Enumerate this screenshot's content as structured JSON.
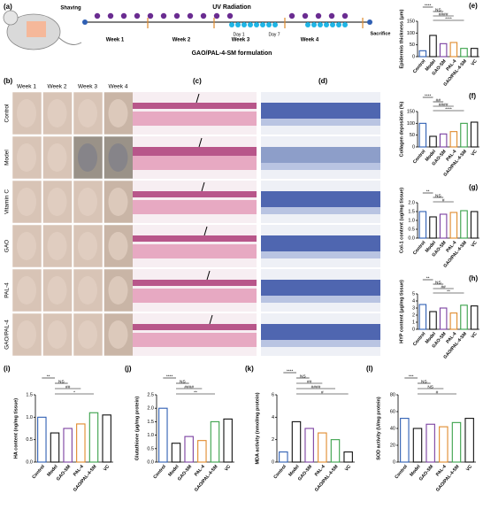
{
  "panel_labels": {
    "a": "(a)",
    "b": "(b)",
    "c": "(c)",
    "d": "(d)"
  },
  "timeline": {
    "top_label": "UV Radiation",
    "shaving": "Shaving",
    "weeks": [
      "Week 1",
      "Week 2",
      "Week 3",
      "Week 4"
    ],
    "days": [
      "Day 1",
      "Day 7"
    ],
    "sacrifice": "Sacrifice",
    "bottom_label": "GAO/PAL-4-SM formulation"
  },
  "photos": {
    "weeks": [
      "Week 1",
      "Week 2",
      "Week 3",
      "Week 4"
    ],
    "groups": [
      "Control",
      "Model",
      "Vitamin C",
      "GAO",
      "PAL-4",
      "GAO/PAL-4"
    ]
  },
  "chart_data": [
    {
      "type": "bar",
      "panel": "(e)",
      "y_label": "Epidermis thickness (μm)",
      "categories": [
        "Control",
        "Model",
        "GAO-SM",
        "PAL-4",
        "GAO/PAL-4-SM",
        "VC"
      ],
      "values": [
        25,
        90,
        55,
        60,
        35,
        35
      ],
      "colors": [
        "#2f5fb3",
        "#111111",
        "#7a3fa0",
        "#e08a2c",
        "#3aa14a",
        "#111111"
      ],
      "ylim": [
        0,
        150
      ],
      "yticks": [
        0,
        50,
        100,
        150
      ],
      "annotations": [
        "****",
        "NS",
        "####",
        "****"
      ]
    },
    {
      "type": "bar",
      "panel": "(f)",
      "y_label": "Collagen deposition (%)",
      "categories": [
        "Control",
        "Model",
        "GAO-SM",
        "PAL-4",
        "GAO/PAL-4-SM",
        "VC"
      ],
      "values": [
        100,
        45,
        55,
        65,
        100,
        105
      ],
      "colors": [
        "#2f5fb3",
        "#111111",
        "#7a3fa0",
        "#e08a2c",
        "#3aa14a",
        "#111111"
      ],
      "ylim": [
        0,
        150
      ],
      "yticks": [
        0,
        50,
        100,
        150
      ],
      "annotations": [
        "****",
        "##",
        "####",
        "****"
      ]
    },
    {
      "type": "bar",
      "panel": "(g)",
      "y_label": "Col-1 content (ug/mg tissue)",
      "categories": [
        "Control",
        "Model",
        "GAO-SM",
        "PAL-4",
        "GAO/PAL-4-SM",
        "VC"
      ],
      "values": [
        1.5,
        1.2,
        1.35,
        1.45,
        1.55,
        1.5
      ],
      "colors": [
        "#2f5fb3",
        "#111111",
        "#7a3fa0",
        "#e08a2c",
        "#3aa14a",
        "#111111"
      ],
      "ylim": [
        0,
        2
      ],
      "yticks": [
        {
          "value": 0,
          "label": "0.0"
        },
        0.5,
        {
          "value": 1,
          "label": "1.0"
        },
        1.5,
        {
          "value": 2,
          "label": "2.0"
        }
      ],
      "annotations": [
        "**",
        "NS",
        "#"
      ]
    },
    {
      "type": "bar",
      "panel": "(h)",
      "y_label": "HYP content (μg/mg tissue)",
      "categories": [
        "Control",
        "Model",
        "GAO-SM",
        "PAL-4",
        "GAO/PAL-4-SM",
        "VC"
      ],
      "values": [
        3.5,
        2.5,
        3.0,
        2.3,
        3.4,
        3.3
      ],
      "colors": [
        "#2f5fb3",
        "#111111",
        "#7a3fa0",
        "#e08a2c",
        "#3aa14a",
        "#111111"
      ],
      "ylim": [
        0,
        5
      ],
      "yticks": [
        0,
        1,
        2,
        3,
        4,
        5
      ],
      "annotations": [
        "**",
        "NS",
        "##",
        "**"
      ]
    },
    {
      "type": "bar",
      "panel": "(i)",
      "y_label": "HA content (ng/mg tissue)",
      "categories": [
        "Control",
        "Model",
        "GAO-SM",
        "PAL-4",
        "GAO/PAL-4-SM",
        "VC"
      ],
      "values": [
        1.0,
        0.65,
        0.75,
        0.85,
        1.1,
        1.05
      ],
      "colors": [
        "#2f5fb3",
        "#111111",
        "#7a3fa0",
        "#e08a2c",
        "#3aa14a",
        "#111111"
      ],
      "ylim": [
        0,
        1.5
      ],
      "yticks": [
        {
          "value": 0,
          "label": "0.0"
        },
        0.5,
        {
          "value": 1,
          "label": "1.0"
        },
        1.5
      ],
      "annotations": [
        "**",
        "NS",
        "##",
        "*"
      ]
    },
    {
      "type": "bar",
      "panel": "(j)",
      "y_label": "Glutathione (μg/mg protein)",
      "categories": [
        "Control",
        "Model",
        "GAO-SM",
        "PAL-4",
        "GAO/PAL-4-SM",
        "VC"
      ],
      "values": [
        2.0,
        0.7,
        0.95,
        0.8,
        1.5,
        1.6
      ],
      "colors": [
        "#2f5fb3",
        "#111111",
        "#7a3fa0",
        "#e08a2c",
        "#3aa14a",
        "#111111"
      ],
      "ylim": [
        0,
        2.5
      ],
      "yticks": [
        {
          "value": 0,
          "label": "0.0"
        },
        0.5,
        {
          "value": 1,
          "label": "1.0"
        },
        1.5,
        {
          "value": 2,
          "label": "2.0"
        },
        2.5
      ],
      "annotations": [
        "****",
        "NS",
        "####",
        "**"
      ]
    },
    {
      "type": "bar",
      "panel": "(k)",
      "y_label": "MDA activity (nmol/mg protein)",
      "categories": [
        "Control",
        "Model",
        "GAO-SM",
        "PAL-4",
        "GAO/PAL-4-SM",
        "VC"
      ],
      "values": [
        0.9,
        3.6,
        3.0,
        2.6,
        2.0,
        0.9
      ],
      "colors": [
        "#2f5fb3",
        "#111111",
        "#7a3fa0",
        "#e08a2c",
        "#3aa14a",
        "#111111"
      ],
      "ylim": [
        0,
        6
      ],
      "yticks": [
        0,
        2,
        4,
        6
      ],
      "annotations": [
        "****",
        "NS",
        "##",
        "####",
        "#"
      ]
    },
    {
      "type": "bar",
      "panel": "(l)",
      "y_label": "SOD activity (U/mg protein)",
      "categories": [
        "Control",
        "Model",
        "GAO-SM",
        "PAL-4",
        "GAO/PAL-4-SM",
        "VC"
      ],
      "values": [
        52,
        40,
        45,
        42,
        47,
        52
      ],
      "colors": [
        "#2f5fb3",
        "#111111",
        "#7a3fa0",
        "#e08a2c",
        "#3aa14a",
        "#111111"
      ],
      "ylim": [
        0,
        80
      ],
      "yticks": [
        0,
        20,
        40,
        60,
        80
      ],
      "annotations": [
        "***",
        "NS",
        "NS",
        "#"
      ]
    }
  ]
}
